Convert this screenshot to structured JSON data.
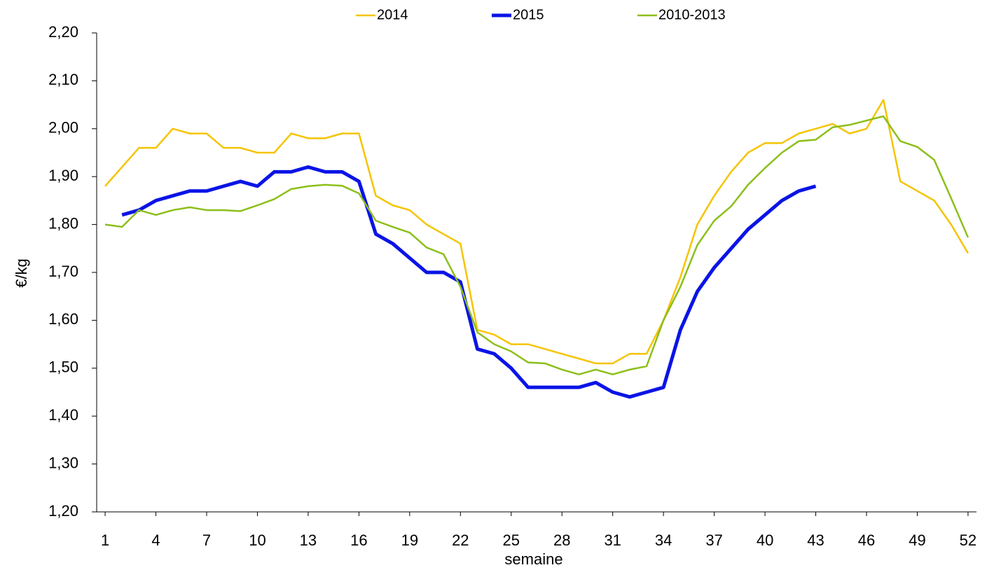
{
  "chart_data": {
    "type": "line",
    "xlabel": "semaine",
    "ylabel": "€/kg",
    "x": [
      1,
      2,
      3,
      4,
      5,
      6,
      7,
      8,
      9,
      10,
      11,
      12,
      13,
      14,
      15,
      16,
      17,
      18,
      19,
      20,
      21,
      22,
      23,
      24,
      25,
      26,
      27,
      28,
      29,
      30,
      31,
      32,
      33,
      34,
      35,
      36,
      37,
      38,
      39,
      40,
      41,
      42,
      43,
      44,
      45,
      46,
      47,
      48,
      49,
      50,
      51,
      52
    ],
    "xlim": [
      0.5,
      52.5
    ],
    "xticks": [
      1,
      4,
      7,
      10,
      13,
      16,
      19,
      22,
      25,
      28,
      31,
      34,
      37,
      40,
      43,
      46,
      49,
      52
    ],
    "ylim": [
      1.2,
      2.2
    ],
    "yticks": [
      {
        "value": 1.2,
        "label": "1,20"
      },
      {
        "value": 1.3,
        "label": "1,30"
      },
      {
        "value": 1.4,
        "label": "1,40"
      },
      {
        "value": 1.5,
        "label": "1,50"
      },
      {
        "value": 1.6,
        "label": "1,60"
      },
      {
        "value": 1.7,
        "label": "1,70"
      },
      {
        "value": 1.8,
        "label": "1,80"
      },
      {
        "value": 1.9,
        "label": "1,90"
      },
      {
        "value": 2.0,
        "label": "2,00"
      },
      {
        "value": 2.1,
        "label": "2,10"
      },
      {
        "value": 2.2,
        "label": "2,20"
      }
    ],
    "grid": false,
    "legend": "top",
    "series": [
      {
        "name": "2014",
        "color": "#f5c400",
        "width": 2.5,
        "values": [
          1.88,
          1.92,
          1.96,
          1.96,
          2.0,
          1.99,
          1.99,
          1.96,
          1.96,
          1.95,
          1.95,
          1.99,
          1.98,
          1.98,
          1.99,
          1.99,
          1.86,
          1.84,
          1.83,
          1.8,
          1.78,
          1.76,
          1.58,
          1.57,
          1.55,
          1.55,
          1.54,
          1.53,
          1.52,
          1.51,
          1.51,
          1.53,
          1.53,
          1.6,
          1.69,
          1.8,
          1.86,
          1.91,
          1.95,
          1.97,
          1.97,
          1.99,
          2.0,
          2.01,
          1.99,
          2.0,
          2.06,
          1.89,
          1.87,
          1.85,
          1.8,
          1.74
        ]
      },
      {
        "name": "2015",
        "color": "#0a14e6",
        "width": 5,
        "values": [
          null,
          1.82,
          1.83,
          1.85,
          1.86,
          1.87,
          1.87,
          1.88,
          1.89,
          1.88,
          1.91,
          1.91,
          1.92,
          1.91,
          1.91,
          1.89,
          1.78,
          1.76,
          1.73,
          1.7,
          1.7,
          1.68,
          1.54,
          1.53,
          1.5,
          1.46,
          1.46,
          1.46,
          1.46,
          1.47,
          1.45,
          1.44,
          1.45,
          1.46,
          1.58,
          1.66,
          1.71,
          1.75,
          1.79,
          1.82,
          1.85,
          1.87,
          1.88,
          null,
          null,
          null,
          null,
          null,
          null,
          null,
          null,
          null
        ]
      },
      {
        "name": "2010-2013",
        "color": "#8cbf1a",
        "width": 2.5,
        "values": [
          1.8,
          1.795,
          1.83,
          1.82,
          1.83,
          1.836,
          1.83,
          1.83,
          1.828,
          1.84,
          1.853,
          1.874,
          1.88,
          1.883,
          1.881,
          1.865,
          1.808,
          1.795,
          1.783,
          1.752,
          1.738,
          1.67,
          1.575,
          1.55,
          1.535,
          1.512,
          1.51,
          1.497,
          1.487,
          1.497,
          1.487,
          1.497,
          1.504,
          1.6,
          1.67,
          1.757,
          1.808,
          1.838,
          1.883,
          1.918,
          1.95,
          1.974,
          1.977,
          2.003,
          2.008,
          2.017,
          2.026,
          1.974,
          1.962,
          1.935,
          1.855,
          1.773
        ]
      }
    ]
  }
}
